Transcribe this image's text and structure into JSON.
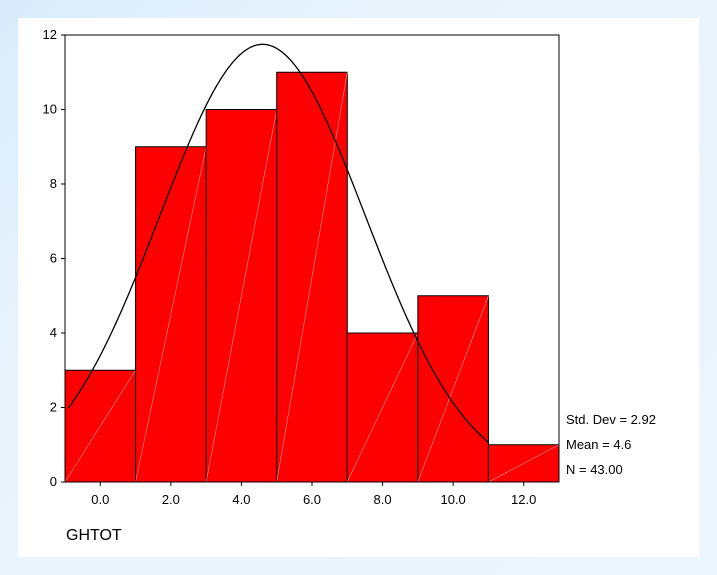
{
  "chart_data": {
    "type": "bar",
    "xlabel": "GHTOT",
    "categories": [
      "0.0",
      "2.0",
      "4.0",
      "6.0",
      "8.0",
      "10.0",
      "12.0"
    ],
    "bin_centers": [
      0,
      2,
      4,
      6,
      8,
      10,
      12
    ],
    "bin_width": 2,
    "values": [
      3,
      9,
      10,
      11,
      4,
      5,
      1
    ],
    "ylim": [
      0,
      12
    ],
    "xlim": [
      -1,
      13
    ],
    "yticks": [
      0,
      2,
      4,
      6,
      8,
      10,
      12
    ],
    "bar_color": "#ff0000",
    "normal_curve": {
      "mean": 4.6,
      "std": 2.92,
      "n": 43
    },
    "stats": {
      "std_dev": "Std. Dev = 2.92",
      "mean": "Mean = 4.6",
      "n": "N = 43.00"
    },
    "grid": false
  }
}
